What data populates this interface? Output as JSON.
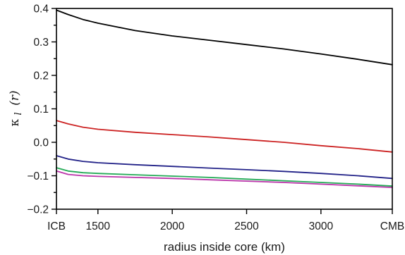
{
  "chart_data": {
    "type": "line",
    "xlabel": "radius inside core (km)",
    "ylabel": {
      "symbol": "κ",
      "subscript": "l",
      "argument": "(r)"
    },
    "xlim": [
      1221,
      3480
    ],
    "ylim": [
      -0.2,
      0.4
    ],
    "xticks": [
      {
        "value": 1221,
        "label": "ICB"
      },
      {
        "value": 1500,
        "label": "1500"
      },
      {
        "value": 2000,
        "label": "2000"
      },
      {
        "value": 2500,
        "label": "2500"
      },
      {
        "value": 3000,
        "label": "3000"
      },
      {
        "value": 3480,
        "label": "CMB"
      }
    ],
    "yticks": [
      {
        "value": 0.4,
        "label": "0.4"
      },
      {
        "value": 0.3,
        "label": "0.3"
      },
      {
        "value": 0.2,
        "label": "0.2"
      },
      {
        "value": 0.1,
        "label": "0.1"
      },
      {
        "value": 0.0,
        "label": "0.0"
      },
      {
        "value": -0.1,
        "label": "−0.1"
      },
      {
        "value": -0.2,
        "label": "−0.2"
      }
    ],
    "yminor": [
      0.35,
      0.25,
      0.15,
      0.05,
      -0.05,
      -0.15
    ],
    "grid": false,
    "legend": "none",
    "series": [
      {
        "color": "#000000",
        "x": [
          1221,
          1300,
          1400,
          1500,
          1750,
          2000,
          2250,
          2500,
          2750,
          3000,
          3250,
          3480
        ],
        "y": [
          0.395,
          0.382,
          0.367,
          0.356,
          0.334,
          0.318,
          0.305,
          0.292,
          0.279,
          0.264,
          0.248,
          0.232
        ]
      },
      {
        "color": "#cc2222",
        "x": [
          1221,
          1300,
          1400,
          1500,
          1750,
          2000,
          2250,
          2500,
          2750,
          3000,
          3250,
          3480
        ],
        "y": [
          0.065,
          0.055,
          0.045,
          0.039,
          0.03,
          0.023,
          0.016,
          0.008,
          0.0,
          -0.01,
          -0.019,
          -0.029
        ]
      },
      {
        "color": "#222288",
        "x": [
          1221,
          1300,
          1400,
          1500,
          1750,
          2000,
          2250,
          2500,
          2750,
          3000,
          3250,
          3480
        ],
        "y": [
          -0.04,
          -0.05,
          -0.057,
          -0.061,
          -0.067,
          -0.072,
          -0.077,
          -0.082,
          -0.087,
          -0.093,
          -0.1,
          -0.108
        ]
      },
      {
        "color": "#22aa55",
        "x": [
          1221,
          1300,
          1400,
          1500,
          1750,
          2000,
          2250,
          2500,
          2750,
          3000,
          3250,
          3480
        ],
        "y": [
          -0.076,
          -0.086,
          -0.091,
          -0.093,
          -0.097,
          -0.101,
          -0.105,
          -0.11,
          -0.115,
          -0.12,
          -0.125,
          -0.131
        ]
      },
      {
        "color": "#bb33aa",
        "x": [
          1221,
          1300,
          1400,
          1500,
          1750,
          2000,
          2250,
          2500,
          2750,
          3000,
          3250,
          3480
        ],
        "y": [
          -0.086,
          -0.096,
          -0.1,
          -0.102,
          -0.105,
          -0.108,
          -0.112,
          -0.116,
          -0.12,
          -0.125,
          -0.13,
          -0.135
        ]
      }
    ]
  }
}
